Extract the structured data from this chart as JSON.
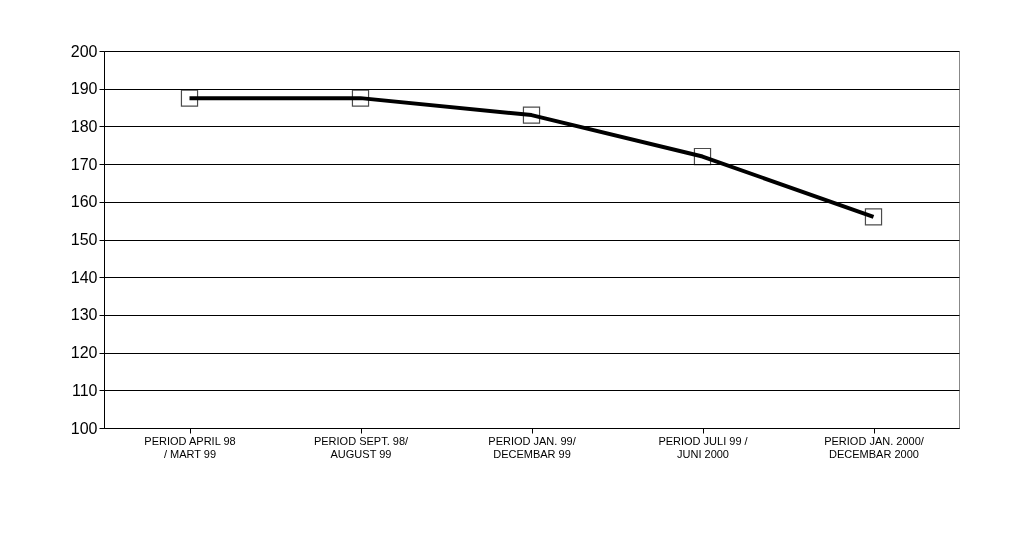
{
  "chart_data": {
    "type": "line",
    "categories": [
      "PERIOD APRIL 98\n/ MART 99",
      "PERIOD SEPT. 98/\nAUGUST 99",
      "PERIOD JAN. 99/\nDECEMBAR 99",
      "PERIOD JULI 99 /\nJUNI 2000",
      "PERIOD JAN. 2000/\nDECEMBAR 2000"
    ],
    "series": [
      {
        "color": "#000000",
        "values": [
          187.5,
          187.5,
          183,
          172,
          156
        ]
      }
    ],
    "ylim": [
      100,
      200
    ],
    "yticks": [
      100,
      110,
      120,
      130,
      140,
      150,
      160,
      170,
      180,
      190,
      200
    ],
    "grid": "y",
    "marker": "square",
    "line_style": "solid",
    "legend": false
  }
}
